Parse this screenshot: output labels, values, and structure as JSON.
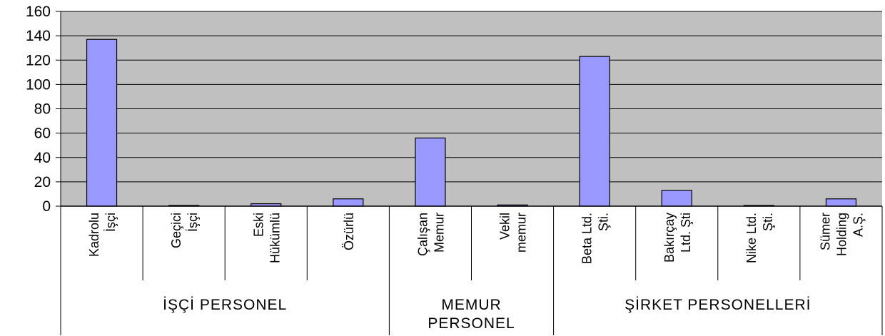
{
  "chart_data": {
    "type": "bar",
    "ylim": [
      0,
      160
    ],
    "yticks": [
      0,
      20,
      40,
      60,
      80,
      100,
      120,
      140,
      160
    ],
    "grid": true,
    "colors": {
      "plot_bg": "#c0c0c0",
      "bar": "#9999ff",
      "bar_edge": "#000000",
      "grid": "#000000"
    },
    "categories": [
      [
        "Kadrolu",
        "İşçi"
      ],
      [
        "Geçici",
        "İşçi"
      ],
      [
        "Eski",
        "Hükümlü"
      ],
      [
        "Özürlü"
      ],
      [
        "Çalışan",
        "Memur"
      ],
      [
        "Vekil",
        "memur"
      ],
      [
        "Beta Ltd.",
        "Şti."
      ],
      [
        "Bakırçay",
        "Ltd. Şti"
      ],
      [
        "Nike Ltd.",
        "Şti."
      ],
      [
        "Sümer",
        "Holding",
        "A.Ş."
      ]
    ],
    "values": [
      137,
      0,
      2,
      6,
      56,
      1,
      123,
      13,
      0,
      6
    ],
    "groups": [
      {
        "label": [
          "İŞÇİ PERSONEL"
        ],
        "span": [
          0,
          3
        ]
      },
      {
        "label": [
          "MEMUR",
          "PERSONEL"
        ],
        "span": [
          4,
          5
        ]
      },
      {
        "label": [
          "ŞİRKET PERSONELLERİ"
        ],
        "span": [
          6,
          9
        ]
      }
    ]
  }
}
